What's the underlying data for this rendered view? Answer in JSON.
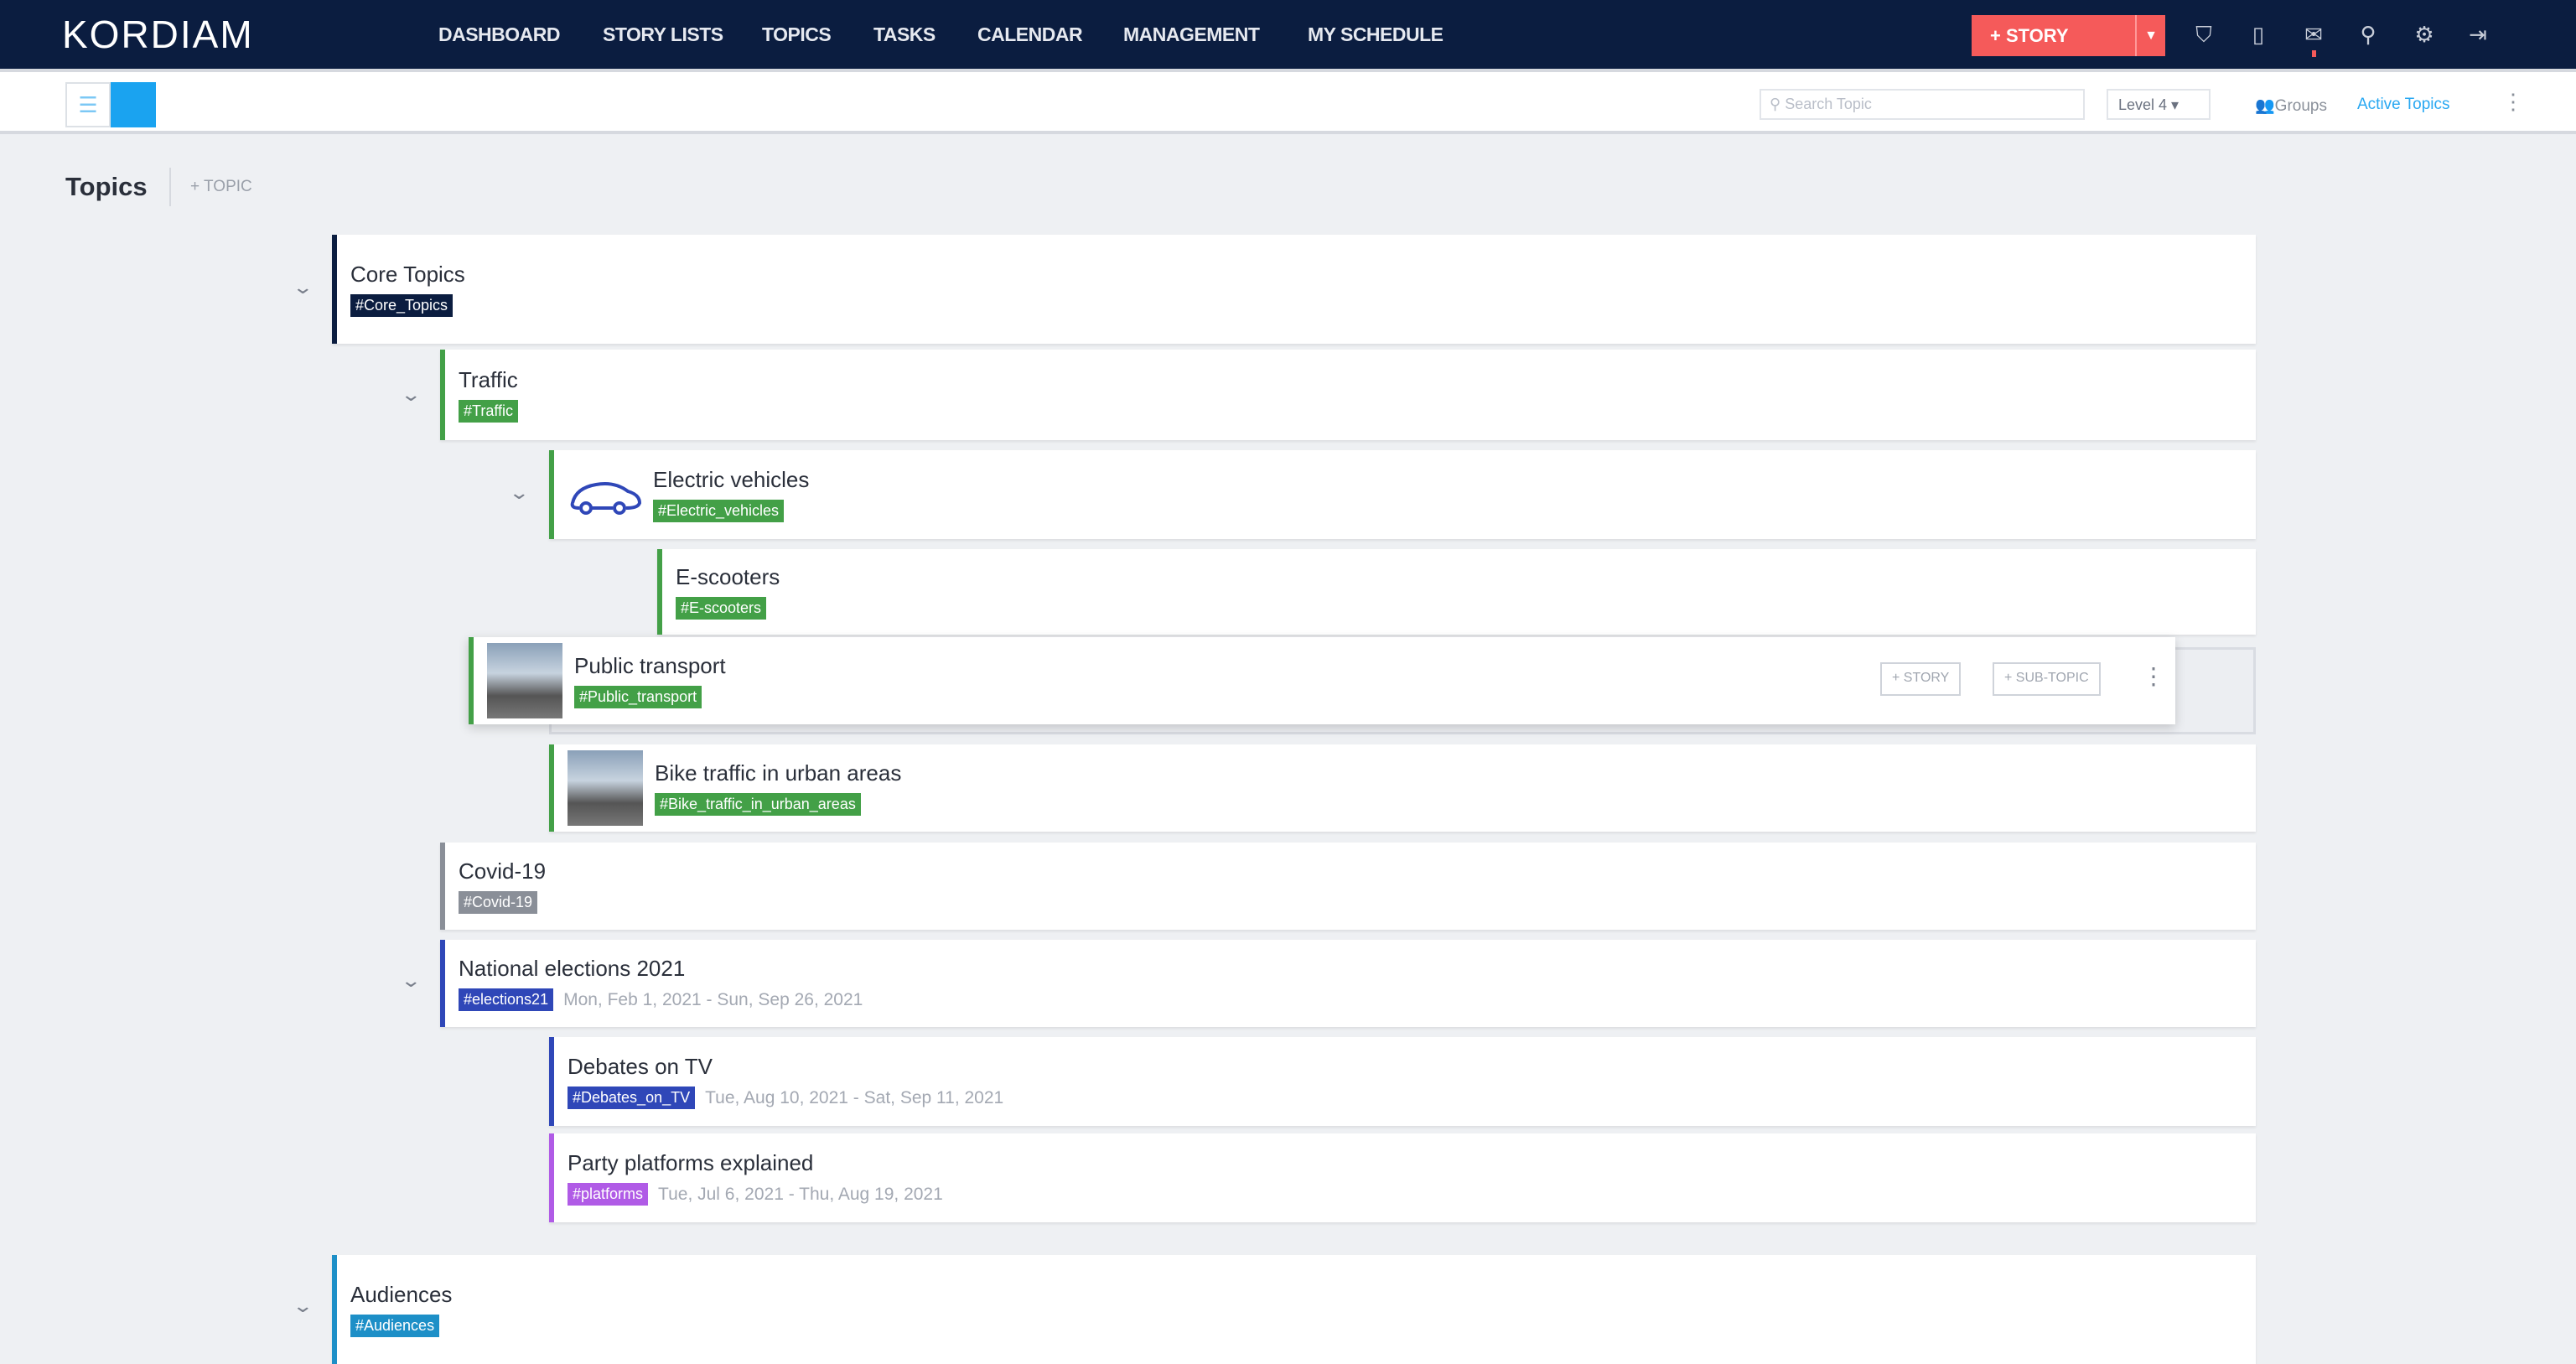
{
  "app": {
    "logo": "KORDIAM"
  },
  "nav": [
    "DASHBOARD",
    "STORY LISTS",
    "TOPICS",
    "TASKS",
    "CALENDAR",
    "MANAGEMENT",
    "MY SCHEDULE"
  ],
  "header": {
    "story_button": "+ STORY",
    "icons": [
      "bookmark-icon",
      "clipboard-icon",
      "inbox-icon",
      "search-icon",
      "settings-icon",
      "logout-icon"
    ]
  },
  "toolbar": {
    "search_placeholder": "Search Topic",
    "level": "Level 4",
    "groups": "Groups",
    "active_topics": "Active Topics"
  },
  "page": {
    "title": "Topics",
    "add_topic": "+ TOPIC"
  },
  "hover_actions": {
    "story": "+ STORY",
    "sub_topic": "+ SUB-TOPIC"
  },
  "colors": {
    "header": "#0b1d40",
    "story": "#f55a5a",
    "accent": "#1aa3f0"
  },
  "topics": [
    {
      "name": "Core Topics",
      "tag": "#Core_Topics",
      "color": "#0b1d40"
    },
    {
      "name": "Traffic",
      "tag": "#Traffic",
      "color": "#43a047"
    },
    {
      "name": "Electric vehicles",
      "tag": "#Electric_vehicles",
      "color": "#43a047",
      "icon": "car-icon"
    },
    {
      "name": "E-scooters",
      "tag": "#E-scooters",
      "color": "#43a047"
    },
    {
      "name": "Public transport",
      "tag": "#Public_transport",
      "color": "#43a047"
    },
    {
      "name": "Bike traffic in urban areas",
      "tag": "#Bike_traffic_in_urban_areas",
      "color": "#43a047"
    },
    {
      "name": "Covid-19",
      "tag": "#Covid-19",
      "color": "#8a8f98"
    },
    {
      "name": "National elections 2021",
      "tag": "#elections21",
      "color": "#2f47b8",
      "date": "Mon, Feb 1, 2021 - Sun, Sep 26, 2021"
    },
    {
      "name": "Debates on TV",
      "tag": "#Debates_on_TV",
      "color": "#2f47b8",
      "date": "Tue, Aug 10, 2021 - Sat, Sep 11, 2021"
    },
    {
      "name": "Party platforms explained",
      "tag": "#platforms",
      "color": "#b05be6",
      "date": "Tue, Jul 6, 2021 - Thu, Aug 19, 2021"
    },
    {
      "name": "Audiences",
      "tag": "#Audiences",
      "color": "#1d8fc7"
    }
  ]
}
